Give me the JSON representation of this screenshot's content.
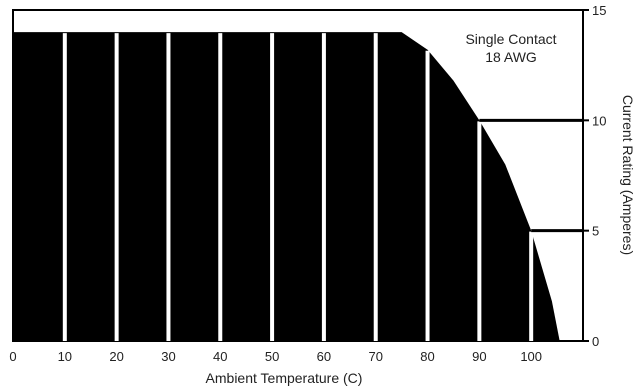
{
  "chart_data": {
    "type": "area",
    "title": "",
    "xlabel": "Ambient Temperature (C)",
    "ylabel": "Current Rating (Amperes)",
    "xlim": [
      0,
      110
    ],
    "ylim": [
      0,
      15
    ],
    "y_axis_side": "right",
    "grid": false,
    "colors": {
      "fill": "#000000",
      "separator": "#ffffff",
      "frame": "#000000",
      "text": "#222222"
    },
    "x_ticks": [
      0,
      10,
      20,
      30,
      40,
      50,
      60,
      70,
      80,
      90,
      100
    ],
    "x_tick_labels": [
      "0",
      "10",
      "20",
      "30",
      "40",
      "50",
      "60",
      "70",
      "80",
      "90",
      "100"
    ],
    "y_ticks": [
      0,
      5,
      10,
      15
    ],
    "y_tick_labels": [
      "0",
      "5",
      "10",
      "15"
    ],
    "series": [
      {
        "x": [
          0,
          75,
          80,
          85,
          90,
          95,
          100,
          104,
          105.5
        ],
        "y": [
          14,
          14,
          13.2,
          11.8,
          10,
          8,
          5,
          1.8,
          0
        ]
      }
    ],
    "separator_x": [
      10,
      20,
      30,
      40,
      50,
      60,
      70,
      80,
      90,
      100
    ],
    "reference_lines": [
      {
        "x_from": 90,
        "y": 10
      },
      {
        "x_from": 100,
        "y": 5
      }
    ],
    "annotations": [
      "Single Contact",
      "18 AWG"
    ]
  }
}
